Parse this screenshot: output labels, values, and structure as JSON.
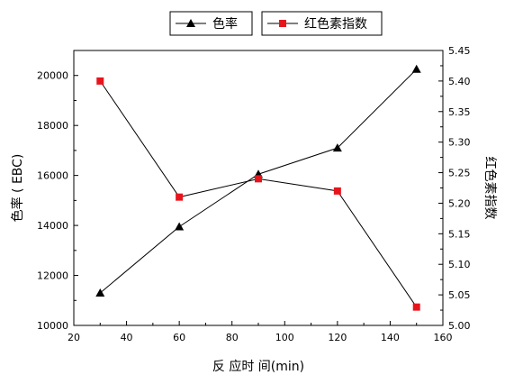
{
  "chart_data": {
    "type": "line",
    "x": [
      30,
      60,
      90,
      120,
      150
    ],
    "xlabel": "反 应时 间(min)",
    "xlim": [
      20,
      160
    ],
    "xticks": [
      "20",
      "40",
      "60",
      "80",
      "100",
      "120",
      "140",
      "160"
    ],
    "ylabel_left": "色率 ( EBC)",
    "ylim_left": [
      10000,
      21000
    ],
    "yticks_left": [
      "10000",
      "12000",
      "14000",
      "16000",
      "18000",
      "20000"
    ],
    "ylabel_right": "红色素指数",
    "ylim_right": [
      5.0,
      5.45
    ],
    "yticks_right": [
      "5.00",
      "5.05",
      "5.10",
      "5.15",
      "5.20",
      "5.25",
      "5.30",
      "5.35",
      "5.40",
      "5.45"
    ],
    "grid": false,
    "legend_position": "top",
    "series": [
      {
        "name": "色率",
        "axis": "left",
        "marker": "triangle",
        "color": "#000000",
        "values": [
          11300,
          13950,
          16050,
          17100,
          20250
        ]
      },
      {
        "name": "红色素指数",
        "axis": "right",
        "marker": "square",
        "color": "#e8141c",
        "values": [
          5.4,
          5.21,
          5.24,
          5.22,
          5.03
        ]
      }
    ]
  }
}
